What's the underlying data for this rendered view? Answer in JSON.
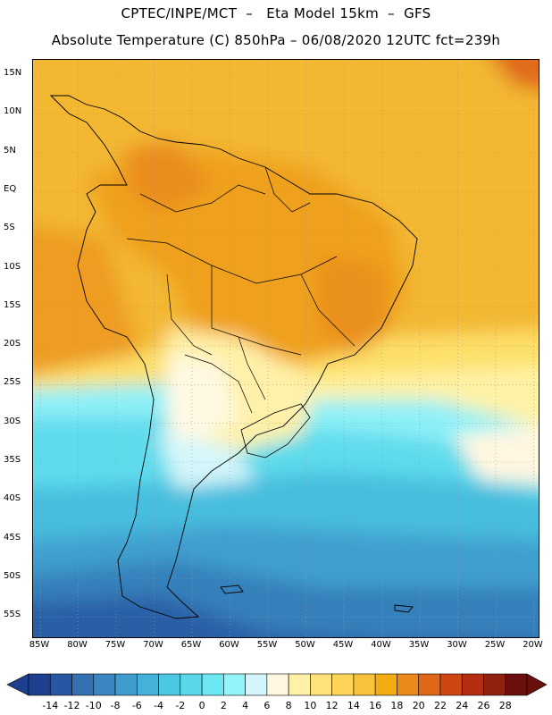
{
  "header": {
    "line1": "CPTEC/INPE/MCT  –   Eta Model 15km  –  GFS",
    "line2": "Absolute Temperature (C) 850hPa – 06/08/2020 12UTC fct=239h"
  },
  "map": {
    "lat_labels": [
      "15N",
      "10N",
      "5N",
      "EQ",
      "5S",
      "10S",
      "15S",
      "20S",
      "25S",
      "30S",
      "35S",
      "40S",
      "45S",
      "50S",
      "55S"
    ],
    "lon_labels": [
      "85W",
      "80W",
      "75W",
      "70W",
      "65W",
      "60W",
      "55W",
      "50W",
      "45W",
      "40W",
      "35W",
      "30W",
      "25W",
      "20W"
    ],
    "lat_range": [
      16,
      -58
    ],
    "lon_range": [
      -87,
      -20
    ],
    "grid": "dotted"
  },
  "colorbar": {
    "labels": [
      "-14",
      "-12",
      "-10",
      "-8",
      "-6",
      "-4",
      "-2",
      "0",
      "2",
      "4",
      "6",
      "8",
      "10",
      "12",
      "14",
      "16",
      "18",
      "20",
      "22",
      "24",
      "26",
      "28"
    ],
    "colors": [
      "#1d3f8e",
      "#2856a2",
      "#3371b2",
      "#3a86c0",
      "#3e9bcc",
      "#44b2d8",
      "#4cc7e2",
      "#5ad8ea",
      "#6ce8f2",
      "#93f4fa",
      "#d2f6fb",
      "#fff7e0",
      "#fff1a8",
      "#ffe27a",
      "#fdd35a",
      "#f8c23a",
      "#f2ac12",
      "#eb8a1a",
      "#e0661a",
      "#cf4513",
      "#b32e12",
      "#90220f",
      "#6b0f0c"
    ]
  }
}
